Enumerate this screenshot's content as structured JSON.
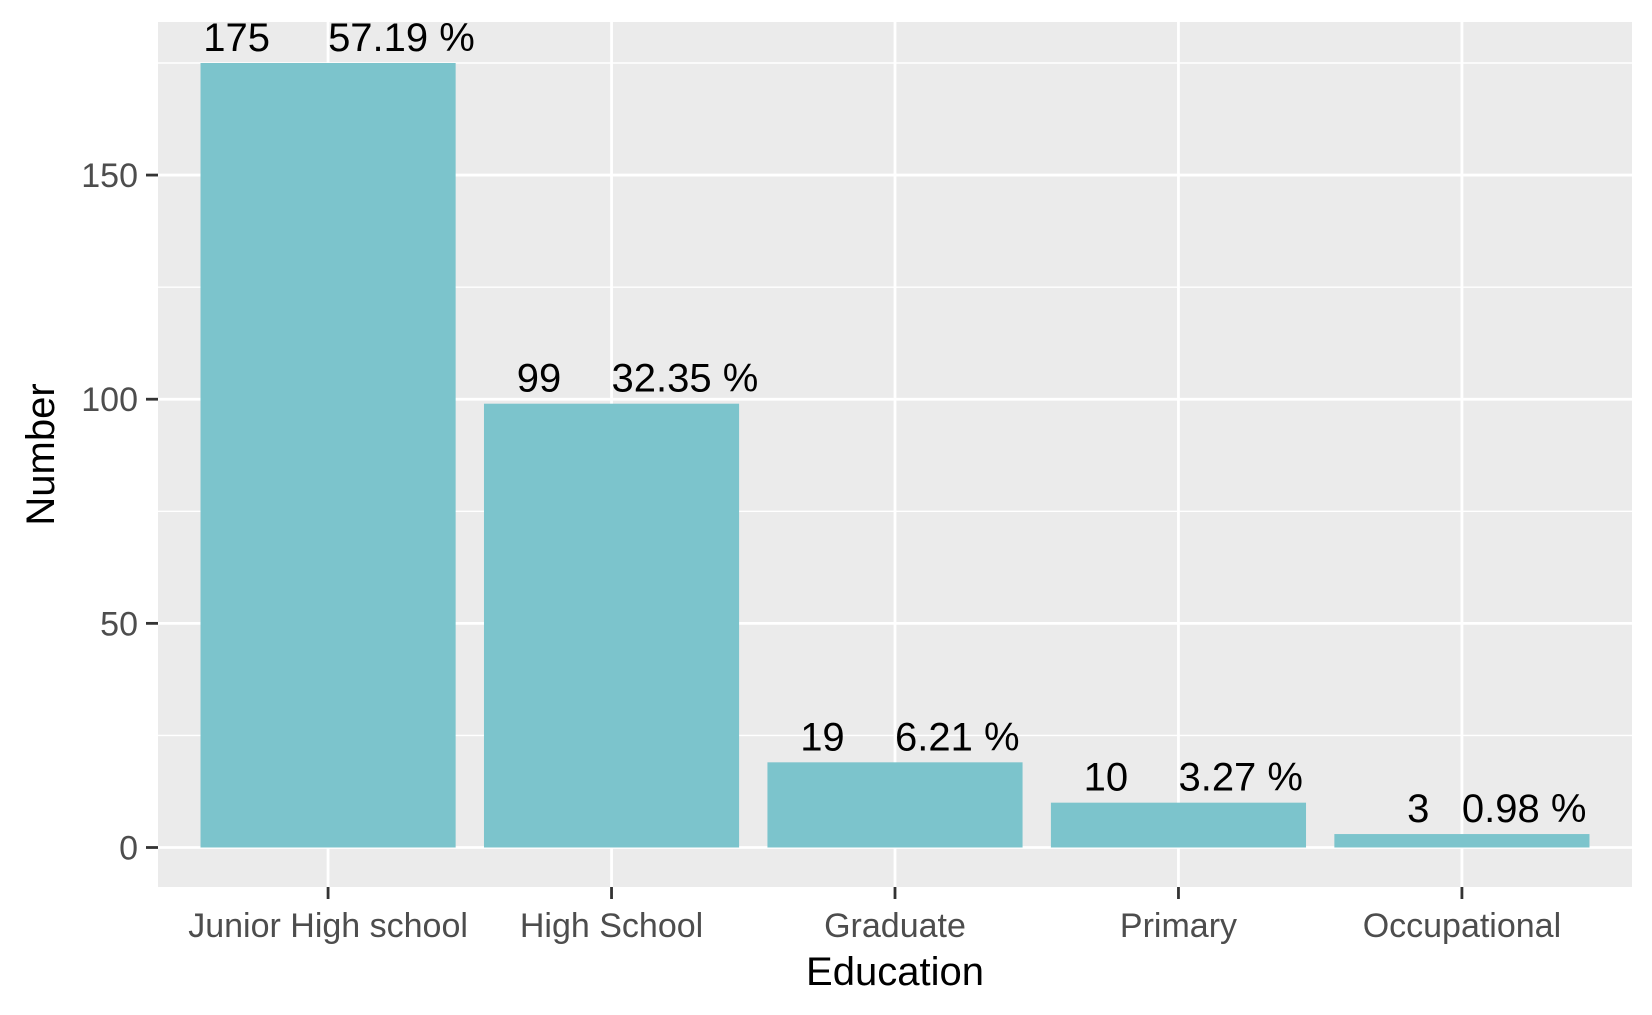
{
  "colors": {
    "panel_background": "#ebebeb",
    "grid": "#ffffff",
    "bar_fill": "#7cc4cc",
    "tick_color": "#333333",
    "tick_label_color": "#4d4d4d"
  },
  "chart_data": {
    "type": "bar",
    "title": "",
    "xlabel": "Education",
    "ylabel": "Number",
    "categories": [
      "Junior High school",
      "High School",
      "Graduate",
      "Primary",
      "Occupational"
    ],
    "values": [
      175,
      99,
      19,
      10,
      3
    ],
    "percent_labels": [
      "57.19 %",
      "32.35 %",
      "6.21 %",
      "3.27 %",
      "0.98 %"
    ],
    "ylim": [
      0,
      175
    ],
    "yticks": [
      0,
      50,
      100,
      150
    ],
    "grid": true,
    "legend": "none"
  }
}
